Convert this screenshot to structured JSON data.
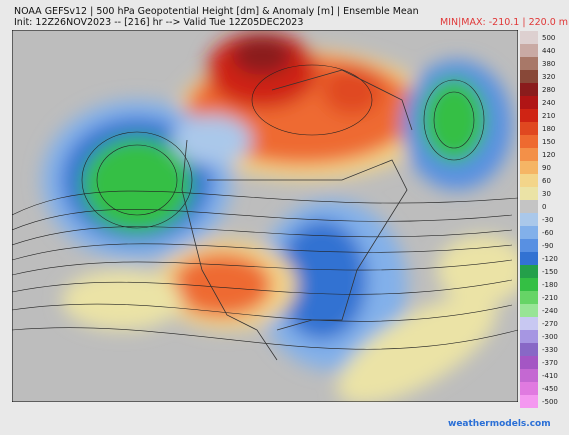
{
  "header": {
    "title_line1": "NOAA GEFSv12 | 500 hPa Geopotential Height [dm] & Anomaly [m] | Ensemble Mean",
    "title_line2": "Init: 12Z26NOV2023 -- [216] hr --> Valid Tue 12Z05DEC2023",
    "minmax": "MIN|MAX: -210.1 | 220.0 m"
  },
  "colorbar": {
    "labels": [
      500,
      440,
      380,
      320,
      280,
      240,
      210,
      180,
      150,
      120,
      90,
      60,
      30,
      0,
      -30,
      -60,
      -90,
      -120,
      -150,
      -180,
      -210,
      -240,
      -270,
      -300,
      -330,
      -370,
      -410,
      -450,
      -500
    ],
    "colors": [
      "#ddd0d0",
      "#c9aaa4",
      "#a87868",
      "#884838",
      "#8a1c1c",
      "#b01515",
      "#cf2414",
      "#e04820",
      "#ee6a30",
      "#f39048",
      "#f5b565",
      "#f3d58a",
      "#ebe3a6",
      "#c4c4c4",
      "#aac8ea",
      "#82b0ea",
      "#5890e2",
      "#3272d2",
      "#24a04a",
      "#34bf44",
      "#66d466",
      "#98e496",
      "#c8c8f2",
      "#a696e2",
      "#8868c6",
      "#a456c4",
      "#c468d2",
      "#e07ae0",
      "#f498f0"
    ]
  },
  "footer": {
    "watermark": "weathermodels.com"
  }
}
